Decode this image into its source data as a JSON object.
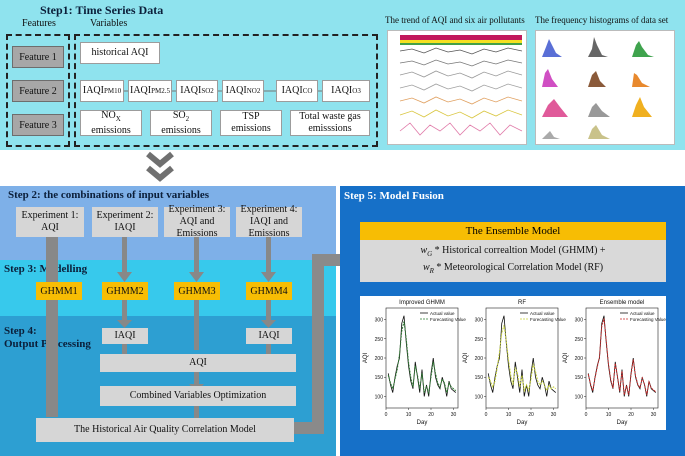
{
  "step1": {
    "title": "Step1: Time Series Data",
    "features_header": "Features",
    "variables_header": "Variables",
    "features": [
      "Feature 1",
      "Feature 2",
      "Feature 3"
    ],
    "historical_aqi": "historical AQI",
    "iaqi_prefix": "IAQI",
    "iaqi_subs": [
      "PM10",
      "PM2.5",
      "SO2",
      "NO2",
      "CO",
      "O3"
    ],
    "emissions": [
      {
        "main": "NO",
        "sub": "X",
        "rest": "emissions"
      },
      {
        "main": "SO",
        "sub": "2",
        "rest": "emissions"
      },
      {
        "main": "TSP",
        "sub": "",
        "rest": "emissions"
      },
      {
        "main": "Total waste gas",
        "sub": "",
        "rest": "emisssions"
      }
    ],
    "trend_title": "The trend of AQI and six air pollutants",
    "hist_title": "The frequency histograms of data set"
  },
  "step2": {
    "title": "Step 2: the combinations of input variables",
    "experiments": [
      {
        "name": "Experiment 1:",
        "desc": "AQI"
      },
      {
        "name": "Experiment 2:",
        "desc": "IAQI"
      },
      {
        "name": "Experiment 3:",
        "desc": "AQI and Emissions"
      },
      {
        "name": "Experiment 4:",
        "desc": "IAQI and Emissions"
      }
    ]
  },
  "step3": {
    "title": "Step 3: Modelling",
    "models": [
      "GHMM1",
      "GHMM2",
      "GHMM3",
      "GHMM4"
    ]
  },
  "step4": {
    "title_line1": "Step 4:",
    "title_line2": "Output Processing",
    "iaqi_left": "IAQI",
    "iaqi_right": "IAQI",
    "aqi": "AQI",
    "optimization": "Combined Variables Optimization",
    "final": "The Historical Air Quality Correlation Model"
  },
  "step5": {
    "title": "Step 5:  Model Fusion",
    "ensemble_title": "The Ensemble Model",
    "formula_line1_w": "w",
    "formula_line1_sub": "G",
    "formula_line1_rest": " * Historical correaltion Model (GHMM) +",
    "formula_line2_w": "w",
    "formula_line2_sub": "R",
    "formula_line2_rest": " * Meteorological Correlation Model (RF)",
    "colors": {
      "ensemble": "#f7bd04",
      "formula_bg": "#d9d9d9",
      "improved": "#2e7d32",
      "rf": "#c8d43a",
      "ensemble_line": "#c62828"
    }
  },
  "chart_data": [
    {
      "type": "line",
      "title": "Improved GHMM",
      "xlabel": "Day",
      "ylabel": "AQI",
      "xlim": [
        0,
        32
      ],
      "ylim": [
        70,
        330
      ],
      "xticks": [
        0,
        10,
        20,
        30
      ],
      "yticks": [
        100,
        150,
        200,
        250,
        300
      ],
      "legend": "top-right",
      "x": [
        1,
        2,
        3,
        4,
        5,
        6,
        7,
        8,
        9,
        10,
        11,
        12,
        13,
        14,
        15,
        16,
        17,
        18,
        19,
        20,
        21,
        22,
        23,
        24,
        25,
        26,
        27,
        28,
        29,
        30,
        31
      ],
      "series": [
        {
          "name": "Actual value",
          "values": [
            160,
            130,
            110,
            150,
            180,
            200,
            290,
            310,
            240,
            180,
            140,
            120,
            190,
            150,
            110,
            170,
            100,
            130,
            100,
            160,
            200,
            150,
            130,
            120,
            150,
            130,
            100,
            140,
            120,
            115,
            110
          ]
        },
        {
          "name": "Forecasting Value",
          "values": [
            155,
            135,
            120,
            145,
            170,
            210,
            270,
            295,
            250,
            190,
            150,
            125,
            180,
            155,
            120,
            160,
            110,
            125,
            110,
            150,
            190,
            160,
            135,
            125,
            145,
            135,
            110,
            135,
            125,
            120,
            115
          ]
        }
      ]
    },
    {
      "type": "line",
      "title": "RF",
      "xlabel": "Day",
      "ylabel": "AQI",
      "xlim": [
        0,
        32
      ],
      "ylim": [
        70,
        330
      ],
      "xticks": [
        0,
        10,
        20,
        30
      ],
      "yticks": [
        100,
        150,
        200,
        250,
        300
      ],
      "legend": "top-right",
      "x": [
        1,
        2,
        3,
        4,
        5,
        6,
        7,
        8,
        9,
        10,
        11,
        12,
        13,
        14,
        15,
        16,
        17,
        18,
        19,
        20,
        21,
        22,
        23,
        24,
        25,
        26,
        27,
        28,
        29,
        30,
        31
      ],
      "series": [
        {
          "name": "Actual value",
          "values": [
            160,
            130,
            110,
            150,
            180,
            200,
            290,
            310,
            240,
            180,
            140,
            120,
            190,
            150,
            110,
            170,
            100,
            130,
            100,
            160,
            200,
            150,
            130,
            120,
            150,
            130,
            100,
            140,
            120,
            115,
            110
          ]
        },
        {
          "name": "Forecasting Value",
          "values": [
            150,
            140,
            125,
            140,
            175,
            215,
            265,
            285,
            245,
            195,
            155,
            130,
            175,
            160,
            125,
            155,
            115,
            130,
            115,
            145,
            185,
            165,
            140,
            130,
            140,
            130,
            115,
            130,
            120,
            125,
            120
          ]
        }
      ]
    },
    {
      "type": "line",
      "title": "Ensemble model",
      "xlabel": "Day",
      "ylabel": "AQI",
      "xlim": [
        0,
        32
      ],
      "ylim": [
        70,
        330
      ],
      "xticks": [
        0,
        10,
        20,
        30
      ],
      "yticks": [
        100,
        150,
        200,
        250,
        300
      ],
      "legend": "top-right",
      "x": [
        1,
        2,
        3,
        4,
        5,
        6,
        7,
        8,
        9,
        10,
        11,
        12,
        13,
        14,
        15,
        16,
        17,
        18,
        19,
        20,
        21,
        22,
        23,
        24,
        25,
        26,
        27,
        28,
        29,
        30,
        31
      ],
      "series": [
        {
          "name": "Actual value",
          "values": [
            160,
            130,
            110,
            150,
            180,
            200,
            290,
            310,
            240,
            180,
            140,
            120,
            190,
            150,
            110,
            170,
            100,
            130,
            100,
            160,
            200,
            150,
            130,
            120,
            150,
            130,
            100,
            140,
            120,
            115,
            110
          ]
        },
        {
          "name": "Forecasting Value",
          "values": [
            158,
            133,
            115,
            148,
            176,
            204,
            282,
            303,
            244,
            184,
            144,
            122,
            186,
            152,
            114,
            166,
            104,
            128,
            104,
            156,
            196,
            154,
            132,
            122,
            148,
            132,
            104,
            138,
            122,
            117,
            112
          ]
        }
      ]
    }
  ]
}
